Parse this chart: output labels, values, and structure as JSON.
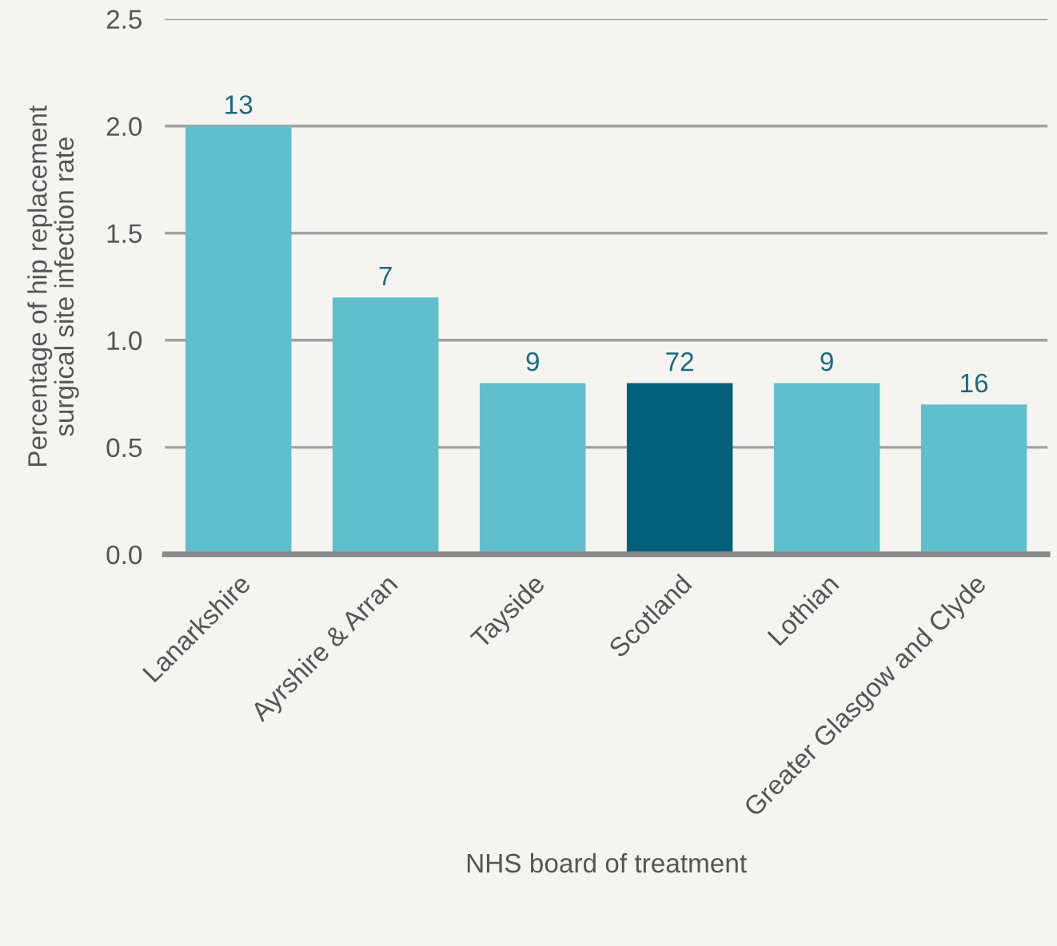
{
  "chart_data": {
    "type": "bar",
    "xlabel": "NHS board of treatment",
    "ylabel": "Percentage of hip replacement\nsurgical site infection rate",
    "categories": [
      "Lanarkshire",
      "Ayrshire & Arran",
      "Tayside",
      "Scotland",
      "Lothian",
      "Greater Glasgow and Clyde"
    ],
    "values": [
      2.0,
      1.2,
      0.8,
      0.8,
      0.8,
      0.7
    ],
    "colors": [
      "#5fbfcd",
      "#5fbfcd",
      "#5fbfcd",
      "#00607a",
      "#5fbfcd",
      "#5fbfcd"
    ],
    "annotations": [
      {
        "text": "13",
        "x": "Lanarkshire",
        "y": 2.0
      },
      {
        "text": "7",
        "x": "Ayrshire & Arran",
        "y": 1.2
      },
      {
        "text": "9",
        "x": "Tayside",
        "y": 0.8
      },
      {
        "text": "72",
        "x": "Scotland",
        "y": 0.8
      },
      {
        "text": "9",
        "x": "Lothian",
        "y": 0.8
      },
      {
        "text": "16",
        "x": "Greater Glasgow and Clyde",
        "y": 0.7
      }
    ],
    "ylim": [
      0,
      2.5
    ],
    "yticks": [
      {
        "value": 0,
        "label": "0.0"
      },
      {
        "value": 0.5,
        "label": "0.5"
      },
      {
        "value": 1.0,
        "label": "1.0"
      },
      {
        "value": 1.5,
        "label": "1.5"
      },
      {
        "value": 2.0,
        "label": "2.0"
      },
      {
        "value": 2.5,
        "label": "2.5"
      }
    ],
    "grid": "y"
  }
}
